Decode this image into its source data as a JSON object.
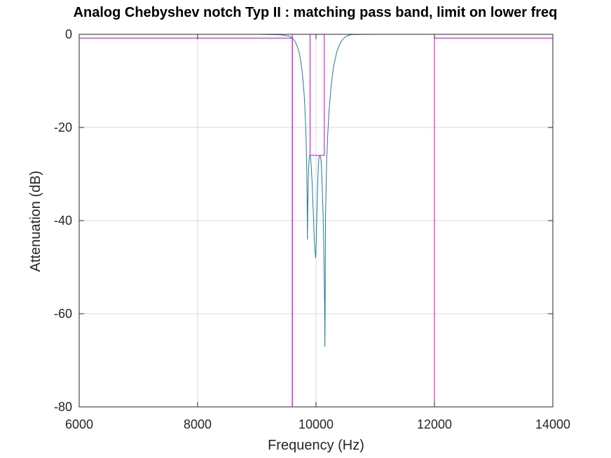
{
  "chart_data": {
    "type": "line",
    "title": "Analog Chebyshev notch Typ II : matching pass band, limit on lower freq",
    "xlabel": "Frequency (Hz)",
    "ylabel": "Attenuation (dB)",
    "xlim": [
      6000,
      14000
    ],
    "ylim": [
      -80,
      0
    ],
    "xticks": [
      6000,
      8000,
      10000,
      12000,
      14000
    ],
    "yticks": [
      -80,
      -60,
      -40,
      -20,
      0
    ],
    "xtick_labels": [
      "6000",
      "8000",
      "10000",
      "12000",
      "14000"
    ],
    "ytick_labels": [
      "-80",
      "-60",
      "-40",
      "-20",
      "0"
    ],
    "grid": true,
    "colors": {
      "response": "#1f7a9c",
      "spec": "#cc00cc",
      "grid": "#d9d9d9",
      "axes": "#262626"
    },
    "series": [
      {
        "kind": "response",
        "x": [
          6000,
          9000,
          9400,
          9550,
          9600,
          9650,
          9700,
          9720,
          9740,
          9760,
          9780,
          9800,
          9810,
          9820,
          9830,
          9840,
          9845,
          9850,
          9855,
          9860,
          9870,
          9880,
          9890,
          9900,
          9910,
          9920,
          9935,
          9950,
          9960,
          9970,
          9980,
          9990,
          9995,
          10000,
          10005,
          10010,
          10020,
          10030,
          10040,
          10050,
          10065,
          10080,
          10090,
          10100,
          10110,
          10120,
          10130,
          10140,
          10145,
          10150,
          10155,
          10160,
          10170,
          10180,
          10200,
          10220,
          10250,
          10280,
          10300,
          10350,
          10400,
          10450,
          10500,
          10550,
          10600,
          11000,
          14000
        ],
        "y": [
          0,
          0,
          -0.1,
          -0.4,
          -0.8,
          -1.6,
          -3.2,
          -4.2,
          -5.6,
          -7.4,
          -9.8,
          -13,
          -15.2,
          -18,
          -21.5,
          -26.5,
          -30,
          -35,
          -44,
          -38,
          -31,
          -27.5,
          -26.1,
          -26,
          -26.6,
          -28.5,
          -32,
          -37,
          -40,
          -44,
          -46,
          -47.5,
          -48,
          -46.5,
          -44,
          -41,
          -36,
          -31.5,
          -28,
          -26.4,
          -26,
          -26.5,
          -28,
          -31,
          -35,
          -39,
          -45,
          -53,
          -58,
          -67,
          -56,
          -40,
          -33,
          -27,
          -21,
          -16.5,
          -11.8,
          -8.4,
          -6.7,
          -3.8,
          -2.1,
          -1.1,
          -0.5,
          -0.2,
          -0.05,
          0,
          0
        ]
      },
      {
        "kind": "passband-limit-lower",
        "x": [
          6000,
          9600,
          9600
        ],
        "y": [
          -0.8,
          -0.8,
          -80
        ]
      },
      {
        "kind": "passband-limit-upper",
        "x": [
          12000,
          12000,
          14000
        ],
        "y": [
          -80,
          -0.8,
          -0.8
        ]
      },
      {
        "kind": "ripple-top",
        "x": [
          6000,
          14000
        ],
        "y": [
          0,
          0
        ]
      },
      {
        "kind": "stopband-limit",
        "x": [
          9600,
          9600,
          9900,
          9900,
          10140,
          10140,
          12000,
          12000
        ],
        "y": [
          -80,
          0,
          0,
          -26,
          -26,
          0,
          0,
          -80
        ]
      }
    ]
  }
}
